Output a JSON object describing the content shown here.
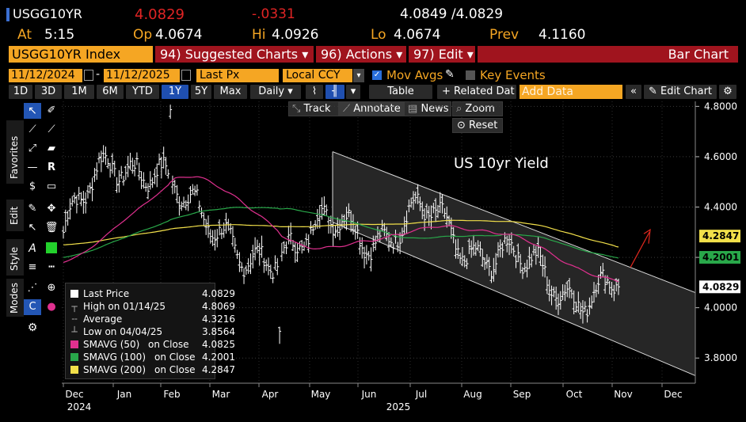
{
  "header": {
    "ticker": "USGG10YR",
    "last": "4.0829",
    "change": "-.0331",
    "bid_ask": "4.0849 /4.0829",
    "at_label": "At",
    "at_time": "5:15",
    "op_label": "Op",
    "op_value": "4.0674",
    "hi_label": "Hi",
    "hi_value": "4.0926",
    "lo_label": "Lo",
    "lo_value": "4.0674",
    "prev_label": "Prev",
    "prev_value": "4.1160"
  },
  "menubar": {
    "security": "USGG10YR Index",
    "suggested": "94) Suggested Charts ▾",
    "actions": "96) Actions ▾",
    "edit": "97) Edit ▾",
    "chart_type": "Bar Chart"
  },
  "datebar": {
    "start": "11/12/2024",
    "end": "11/12/2025",
    "field": "Last Px",
    "currency": "Local CCY",
    "mov_avgs": "Mov Avgs",
    "key_events": "Key Events"
  },
  "periods": [
    "1D",
    "3D",
    "1M",
    "6M",
    "YTD",
    "1Y",
    "5Y",
    "Max"
  ],
  "selected_period": "1Y",
  "toolbar": {
    "frequency": "Daily ▾",
    "table": "Table",
    "related": "+ Related Dat",
    "add_data_placeholder": "Add Data",
    "edit_chart": "Edit Chart",
    "track": "Track",
    "annotate": "Annotate",
    "news": "News",
    "zoom": "Zoom",
    "reset": "Reset"
  },
  "side_tabs": [
    "Favorites",
    "Edit",
    "Style",
    "Modes"
  ],
  "legend": [
    {
      "label": "Last Price",
      "extra": "",
      "value": "4.0829",
      "color": "#ffffff"
    },
    {
      "label": "High on 01/14/25",
      "extra": "",
      "value": "4.8069",
      "color": ""
    },
    {
      "label": "Average",
      "extra": "",
      "value": "4.3216",
      "color": ""
    },
    {
      "label": "Low on 04/04/25",
      "extra": "",
      "value": "3.8564",
      "color": ""
    },
    {
      "label": "SMAVG (50)",
      "extra": "on Close",
      "value": "4.0825",
      "color": "#e0308f"
    },
    {
      "label": "SMAVG (100)",
      "extra": "on Close",
      "value": "4.2001",
      "color": "#29a84a"
    },
    {
      "label": "SMAVG (200)",
      "extra": "on Close",
      "value": "4.2847",
      "color": "#f2e04a"
    }
  ],
  "chart_data": {
    "type": "bar",
    "annotation": "US 10yr Yield",
    "ylim": [
      3.7,
      4.82
    ],
    "y_ticks": [
      "4.8000",
      "4.6000",
      "4.4000",
      "4.2000",
      "4.0000",
      "3.8000"
    ],
    "y_tick_values": [
      4.8,
      4.6,
      4.4,
      4.2,
      4.0,
      3.8
    ],
    "x_months": [
      "Dec",
      "Jan",
      "Feb",
      "Mar",
      "Apr",
      "May",
      "Jun",
      "Jul",
      "Aug",
      "Sep",
      "Oct",
      "Nov",
      "Dec"
    ],
    "x_years": [
      "2024",
      "2025"
    ],
    "price_tags": [
      {
        "value": 4.2847,
        "text": "4.2847",
        "color": "#f2e04a"
      },
      {
        "value": 4.2001,
        "text": "4.2001",
        "color": "#29a84a"
      },
      {
        "value": 4.0829,
        "text": "4.0829",
        "color": "#ffffff"
      }
    ],
    "monthly_path": [
      {
        "month": "Nov-24",
        "close": 4.3
      },
      {
        "month": "Dec-24",
        "close": 4.55
      },
      {
        "month": "Jan-25",
        "close": 4.6
      },
      {
        "month": "Feb-25",
        "close": 4.3
      },
      {
        "month": "Mar-25",
        "close": 4.25
      },
      {
        "month": "Apr-25",
        "close": 4.18
      },
      {
        "month": "May-25",
        "close": 4.4
      },
      {
        "month": "Jun-25",
        "close": 4.25
      },
      {
        "month": "Jul-25",
        "close": 4.38
      },
      {
        "month": "Aug-25",
        "close": 4.23
      },
      {
        "month": "Sep-25",
        "close": 4.15
      },
      {
        "month": "Oct-25",
        "close": 4.08
      },
      {
        "month": "Nov-25",
        "close": 4.0829
      }
    ],
    "channel": {
      "upper": [
        4.62,
        4.06
      ],
      "lower": [
        4.34,
        3.73
      ],
      "from": "May-25",
      "to": "Dec-25"
    },
    "high": 4.8069,
    "low": 3.8564,
    "average": 4.3216
  },
  "colors": {
    "amber": "#f5a623",
    "sma50": "#e0308f",
    "sma100": "#29a84a",
    "sma200": "#f2e04a",
    "menu_red": "#a0141e",
    "selected_blue": "#1f4fb0"
  }
}
